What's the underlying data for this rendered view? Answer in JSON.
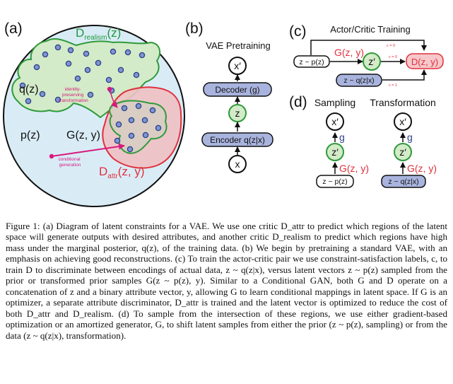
{
  "figure": {
    "panel_a": {
      "label": "(a)",
      "d_realism": "D",
      "d_realism_sub": "realism",
      "d_realism_arg": "(z)",
      "q": "q(z)",
      "p": "p(z)",
      "identity_note": [
        "identity-",
        "preserving",
        "transformation"
      ],
      "g": "G(z, y)",
      "cond_note": [
        "conditional",
        "generation"
      ],
      "d_attr": "D",
      "d_attr_sub": "attr",
      "d_attr_arg": "(z, y)"
    },
    "panel_b": {
      "label": "(b)",
      "title": "VAE Pretraining",
      "x_prime": "x′",
      "decoder": "Decoder (g)",
      "z": "z",
      "encoder": "Encoder q(z|x)",
      "x": "x"
    },
    "panel_c": {
      "label": "(c)",
      "title": "Actor/Critic Training",
      "prior": "z ~ p(z)",
      "g": "G(z, y)",
      "z_prime": "z′",
      "d": "D(z, y)",
      "posterior": "z ~ q(z|x)",
      "c0_top": "c = 0",
      "c0_mid": "c = 0",
      "c1": "c = 1"
    },
    "panel_d": {
      "label": "(d)",
      "sampling": "Sampling",
      "transformation": "Transformation",
      "x_prime": "x′",
      "g": "g",
      "z_prime": "z′",
      "G": "G(z, y)",
      "prior": "z ~ p(z)",
      "posterior": "z ~ q(z|x)"
    },
    "colors": {
      "bg_circle": "#d9ecf6",
      "realism_fill": "#d3ebc8",
      "realism_stroke": "#2f9a3a",
      "attr_fill": "#eec1c4",
      "attr_stroke": "#e0303c",
      "dot_fill": "#7f95cf",
      "dot_stroke": "#2c3f8a",
      "magenta": "#d9187f",
      "box_fill": "#a9b4de",
      "green_text": "#1e9a3a",
      "red_text": "#e0303c"
    }
  },
  "caption": {
    "text": "Figure 1: (a) Diagram of latent constraints for a VAE. We use one critic D_attr to predict which regions of the latent space will generate outputs with desired attributes, and another critic D_realism to predict which regions have high mass under the marginal posterior, q(z), of the training data. (b) We begin by pretraining a standard VAE, with an emphasis on achieving good reconstructions. (c) To train the actor-critic pair we use constraint-satisfaction labels, c, to train D to discriminate between encodings of actual data, z ~ q(z|x), versus latent vectors z ~ p(z) sampled from the prior or transformed prior samples G(z ~ p(z), y). Similar to a Conditional GAN, both G and D operate on a concatenation of z and a binary attribute vector, y, allowing G to learn conditional mappings in latent space. If G is an optimizer, a separate attribute discriminator, D_attr is trained and the latent vector is optimized to reduce the cost of both D_attr and D_realism. (d) To sample from the intersection of these regions, we use either gradient-based optimization or an amortized generator, G, to shift latent samples from either the prior (z ~ p(z), sampling) or from the data (z ~ q(z|x), transformation)."
  }
}
